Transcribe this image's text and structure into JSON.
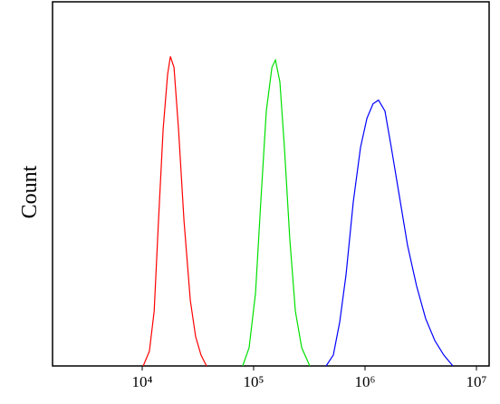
{
  "chart_data": {
    "type": "line",
    "y_label": "Count",
    "xscale": "log",
    "xlim": [
      1567,
      13000000
    ],
    "ylim": [
      0,
      100
    ],
    "xticks": [
      {
        "value": 10000,
        "label": "10⁴"
      },
      {
        "value": 100000,
        "label": "10⁵"
      },
      {
        "value": 1000000,
        "label": "10⁶"
      },
      {
        "value": 10000000,
        "label": "10⁷"
      }
    ],
    "grid": false,
    "series": [
      {
        "color": "#ff0000",
        "x": [
          10200,
          11600,
          12800,
          14000,
          15400,
          16900,
          17900,
          19300,
          21200,
          23700,
          27000,
          30200,
          33700,
          37800
        ],
        "values": [
          0,
          4,
          15,
          40,
          65,
          80,
          85,
          82,
          65,
          40,
          18,
          8,
          3,
          0
        ]
      },
      {
        "color": "#00e000",
        "x": [
          79800,
          91000,
          104000,
          116000,
          130000,
          146000,
          157000,
          172000,
          189000,
          211000,
          237000,
          270000,
          319000
        ],
        "values": [
          0,
          5,
          20,
          45,
          70,
          82,
          84,
          78,
          60,
          35,
          15,
          5,
          0
        ]
      },
      {
        "color": "#0000ff",
        "x": [
          447000,
          519000,
          592000,
          675000,
          784000,
          910000,
          1040000,
          1180000,
          1320000,
          1510000,
          1720000,
          2000000,
          2410000,
          2900000,
          3500000,
          4230000,
          5090000,
          6150000
        ],
        "values": [
          0,
          3,
          12,
          25,
          45,
          60,
          68,
          72,
          73,
          70,
          60,
          48,
          33,
          22,
          13,
          7,
          3,
          0
        ]
      }
    ]
  }
}
